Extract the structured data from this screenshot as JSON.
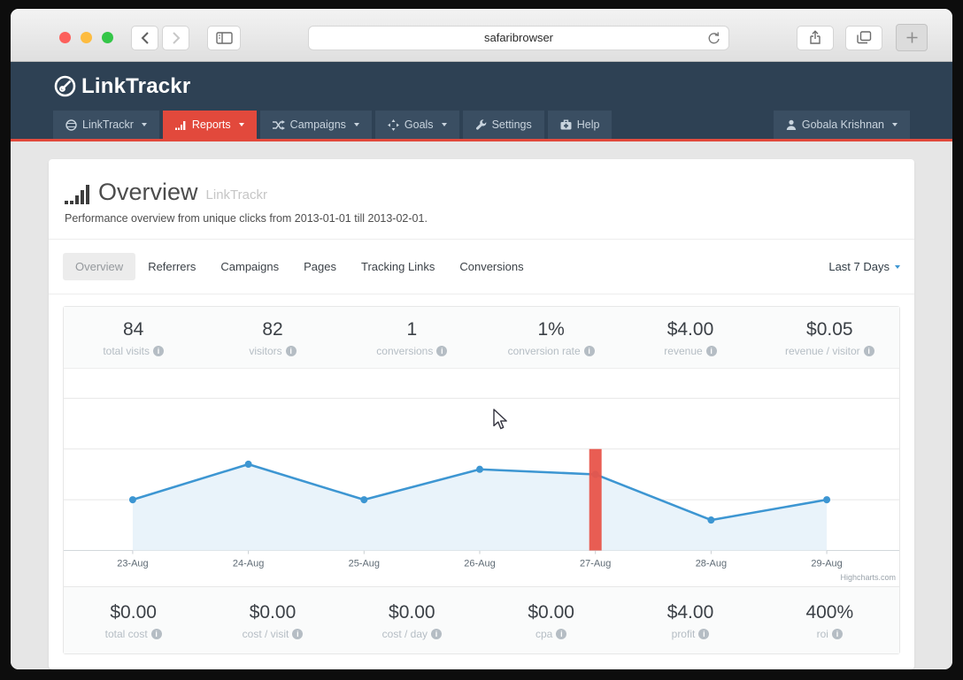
{
  "browser": {
    "url_text": "safaribrowser"
  },
  "app": {
    "logo_text": "LinkTrackr",
    "nav": {
      "items": [
        {
          "label": "LinkTrackr",
          "caret": true,
          "active": false
        },
        {
          "label": "Reports",
          "caret": true,
          "active": true
        },
        {
          "label": "Campaigns",
          "caret": true,
          "active": false
        },
        {
          "label": "Goals",
          "caret": true,
          "active": false
        },
        {
          "label": "Settings",
          "caret": false,
          "active": false
        },
        {
          "label": "Help",
          "caret": false,
          "active": false
        }
      ],
      "user": {
        "label": "Gobala Krishnan",
        "caret": true
      }
    }
  },
  "page": {
    "title": "Overview",
    "title_suffix": "LinkTrackr",
    "subtitle": "Performance overview from unique clicks from 2013-01-01 till 2013-02-01.",
    "tabs": [
      "Overview",
      "Referrers",
      "Campaigns",
      "Pages",
      "Tracking Links",
      "Conversions"
    ],
    "active_tab": "Overview",
    "date_range": "Last 7 Days",
    "stats_top": [
      {
        "value": "84",
        "label": "total visits"
      },
      {
        "value": "82",
        "label": "visitors"
      },
      {
        "value": "1",
        "label": "conversions"
      },
      {
        "value": "1%",
        "label": "conversion rate"
      },
      {
        "value": "$4.00",
        "label": "revenue"
      },
      {
        "value": "$0.05",
        "label": "revenue / visitor"
      }
    ],
    "stats_bottom": [
      {
        "value": "$0.00",
        "label": "total cost"
      },
      {
        "value": "$0.00",
        "label": "cost / visit"
      },
      {
        "value": "$0.00",
        "label": "cost / day"
      },
      {
        "value": "$0.00",
        "label": "cpa"
      },
      {
        "value": "$4.00",
        "label": "profit"
      },
      {
        "value": "400%",
        "label": "roi"
      }
    ]
  },
  "chart_data": {
    "type": "area",
    "categories": [
      "23-Aug",
      "24-Aug",
      "25-Aug",
      "26-Aug",
      "27-Aug",
      "28-Aug",
      "29-Aug"
    ],
    "series": [
      {
        "name": "visits",
        "values": [
          10,
          17,
          10,
          16,
          15,
          6,
          10
        ],
        "color": "#3d96d2",
        "fill": "#e9f3fa"
      }
    ],
    "highlight_column": {
      "category": "27-Aug",
      "value": 20,
      "color": "#e8544a"
    },
    "ylim": [
      0,
      30
    ],
    "gridline_step": 10,
    "grid": true,
    "y_axis_labels": false,
    "legend": false,
    "xlabel": "",
    "ylabel": "",
    "credit": "Highcharts.com"
  },
  "colors": {
    "header_navy": "#2e4154",
    "nav_tile": "#3a4e62",
    "accent_red": "#e2493c",
    "line_blue": "#3d96d2",
    "area_fill": "#e9f3fa",
    "highlight_bar": "#e8544a"
  }
}
